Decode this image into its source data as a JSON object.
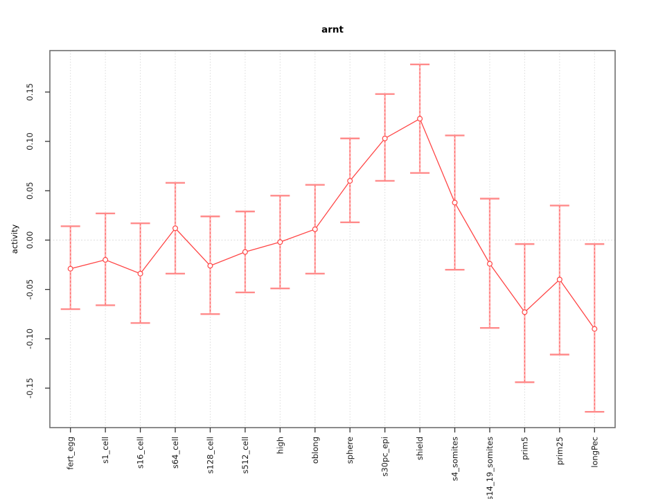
{
  "window": {
    "background_color": "#ffffff"
  },
  "chart_data": {
    "type": "line",
    "title": "arnt",
    "xlabel": "",
    "ylabel": "activity",
    "legend": "none",
    "grid": {
      "vertical_dotted_at_each_category": true,
      "horizontal_dotted_at_zero": true
    },
    "ylim": [
      -0.19,
      0.192
    ],
    "y_ticks": {
      "values": [
        -0.15,
        -0.1,
        -0.05,
        0.0,
        0.05,
        0.1,
        0.15
      ],
      "labels": [
        "-0.15",
        "-0.10",
        "-0.05",
        "0.00",
        "0.05",
        "0.10",
        "0.15"
      ]
    },
    "categories": [
      "fert_egg",
      "s1_cell",
      "s16_cell",
      "s64_cell",
      "s128_cell",
      "s512_cell",
      "high",
      "oblong",
      "sphere",
      "s30pc_epi",
      "shield",
      "s4_somites",
      "s14_19_somites",
      "prim5",
      "prim25",
      "longPec"
    ],
    "series": [
      {
        "name": "activity",
        "values": [
          -0.029,
          -0.02,
          -0.034,
          0.012,
          -0.026,
          -0.012,
          -0.002,
          0.011,
          0.06,
          0.103,
          0.123,
          0.038,
          -0.024,
          -0.073,
          -0.04,
          -0.09
        ],
        "upper": [
          0.014,
          0.027,
          0.017,
          0.058,
          0.024,
          0.029,
          0.045,
          0.056,
          0.103,
          0.148,
          0.178,
          0.106,
          0.042,
          -0.004,
          0.035,
          -0.004
        ],
        "lower": [
          -0.07,
          -0.066,
          -0.084,
          -0.034,
          -0.075,
          -0.053,
          -0.049,
          -0.034,
          0.018,
          0.06,
          0.068,
          -0.03,
          -0.089,
          -0.144,
          -0.116,
          -0.174
        ]
      }
    ],
    "colors": {
      "series_line": "#ff4545",
      "marker_stroke": "#ff4545",
      "marker_fill": "#ffffff",
      "errorbar_stem": "#ffb3b3",
      "errorbar_dash": "#ff5c5c",
      "errorbar_cap": "#ff8a8a",
      "gridline": "#d9d9d9",
      "zero_line": "#dcdcdc",
      "plot_border": "#6e6e6e",
      "tick": "#333333"
    }
  }
}
